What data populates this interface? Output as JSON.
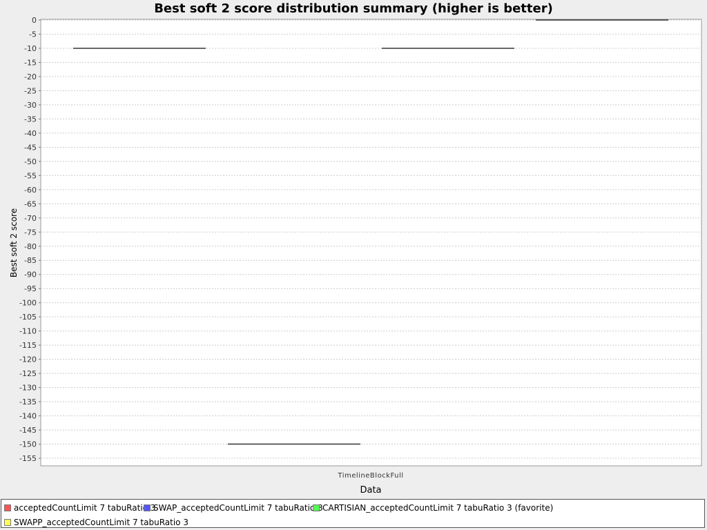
{
  "chart_data": {
    "type": "box",
    "title": "Best soft 2 score distribution summary (higher is better)",
    "xlabel": "Data",
    "ylabel": "Best soft 2 score",
    "categories": [
      "TimelineBlockFull"
    ],
    "ylim": [
      -158,
      0
    ],
    "yticks": [
      0,
      -5,
      -10,
      -15,
      -20,
      -25,
      -30,
      -35,
      -40,
      -45,
      -50,
      -55,
      -60,
      -65,
      -70,
      -75,
      -80,
      -85,
      -90,
      -95,
      -100,
      -105,
      -110,
      -115,
      -120,
      -125,
      -130,
      -135,
      -140,
      -145,
      -150,
      -155
    ],
    "grid": true,
    "legend_position": "bottom",
    "series": [
      {
        "name": "acceptedCountLimit 7 tabuRatio 3",
        "color": "#ff5555",
        "values": [
          -10
        ]
      },
      {
        "name": "SWAP_acceptedCountLimit 7 tabuRatio 3",
        "color": "#5555ff",
        "values": [
          -150
        ]
      },
      {
        "name": "CARTISIAN_acceptedCountLimit 7 tabuRatio 3 (favorite)",
        "color": "#55ff55",
        "values": [
          -10
        ]
      },
      {
        "name": "SWAPP_acceptedCountLimit 7 tabuRatio 3",
        "color": "#ffff55",
        "values": [
          0
        ]
      }
    ]
  },
  "colors": {
    "background": "#eeeeee",
    "plot_background": "#ffffff",
    "gridline": "#cccccc",
    "box_line": "#333333"
  }
}
